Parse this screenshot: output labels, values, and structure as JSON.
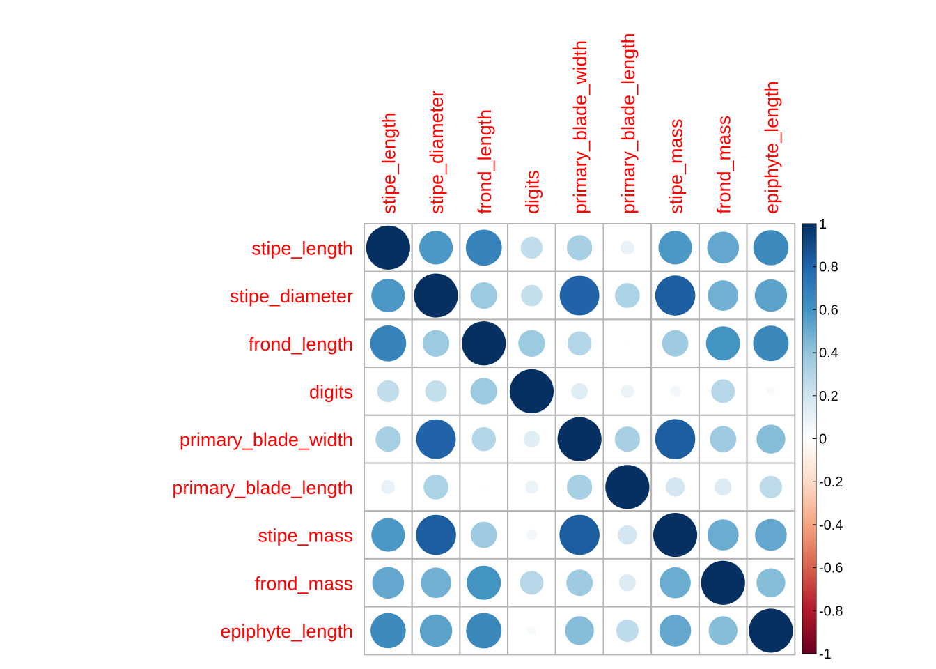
{
  "chart_data": {
    "type": "heatmap",
    "variables": [
      "stipe_length",
      "stipe_diameter",
      "frond_length",
      "digits",
      "primary_blade_width",
      "primary_blade_length",
      "stipe_mass",
      "frond_mass",
      "epiphyte_length"
    ],
    "matrix": [
      [
        1.0,
        0.58,
        0.67,
        0.25,
        0.33,
        0.1,
        0.58,
        0.52,
        0.64
      ],
      [
        0.58,
        1.0,
        0.37,
        0.24,
        0.81,
        0.32,
        0.83,
        0.48,
        0.54
      ],
      [
        0.67,
        0.37,
        1.0,
        0.37,
        0.3,
        0.01,
        0.36,
        0.6,
        0.65
      ],
      [
        0.25,
        0.24,
        0.37,
        1.0,
        0.14,
        0.09,
        0.06,
        0.29,
        0.04
      ],
      [
        0.33,
        0.81,
        0.3,
        0.14,
        1.0,
        0.33,
        0.83,
        0.36,
        0.43
      ],
      [
        0.1,
        0.32,
        0.01,
        0.09,
        0.33,
        1.0,
        0.19,
        0.15,
        0.26
      ],
      [
        0.58,
        0.83,
        0.36,
        0.06,
        0.83,
        0.19,
        1.0,
        0.5,
        0.52
      ],
      [
        0.52,
        0.48,
        0.6,
        0.29,
        0.36,
        0.15,
        0.5,
        1.0,
        0.43
      ],
      [
        0.64,
        0.54,
        0.65,
        0.04,
        0.43,
        0.26,
        0.52,
        0.43,
        1.0
      ]
    ],
    "colorbar": {
      "range": [
        -1,
        1
      ],
      "ticks": [
        "1",
        "0.8",
        "0.6",
        "0.4",
        "0.2",
        "0",
        "-0.2",
        "-0.4",
        "-0.6",
        "-0.8",
        "-1"
      ],
      "colors": [
        "#67001f",
        "#b2182b",
        "#d6604d",
        "#f4a582",
        "#fddbc7",
        "#ffffff",
        "#d1e5f0",
        "#92c5de",
        "#4393c3",
        "#2166ac",
        "#053061"
      ]
    },
    "label_color": "#ff0000",
    "grid": true,
    "grid_color": "#b3b3b3",
    "legend_position": "right"
  }
}
